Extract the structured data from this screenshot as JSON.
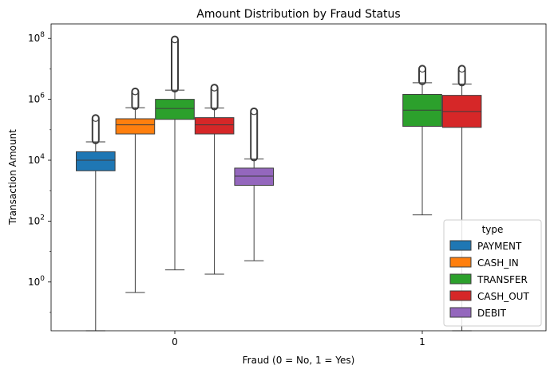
{
  "chart_data": {
    "type": "box",
    "title": "Amount Distribution by Fraud Status",
    "xlabel": "Fraud (0 = No, 1 = Yes)",
    "ylabel": "Transaction Amount",
    "yscale": "log",
    "ylim": [
      0.025,
      300000000
    ],
    "yticks": [
      {
        "value": 1,
        "base": "10",
        "exp": "0"
      },
      {
        "value": 100,
        "base": "10",
        "exp": "2"
      },
      {
        "value": 10000,
        "base": "10",
        "exp": "4"
      },
      {
        "value": 1000000,
        "base": "10",
        "exp": "6"
      },
      {
        "value": 100000000,
        "base": "10",
        "exp": "8"
      }
    ],
    "categories": [
      "0",
      "1"
    ],
    "legend": {
      "title": "type",
      "position": "lower-right"
    },
    "series": [
      {
        "name": "PAYMENT",
        "color": "#1f77b4",
        "boxes": [
          {
            "category": "0",
            "min": 0.02,
            "q1": 4500,
            "median": 10000,
            "q3": 19000,
            "max": 40000,
            "outlier_max": 240000
          },
          null
        ]
      },
      {
        "name": "CASH_IN",
        "color": "#ff7f0e",
        "boxes": [
          {
            "category": "0",
            "min": 0.45,
            "q1": 73000,
            "median": 145000,
            "q3": 230000,
            "max": 530000,
            "outlier_max": 1800000
          },
          null
        ]
      },
      {
        "name": "TRANSFER",
        "color": "#2ca02c",
        "boxes": [
          {
            "category": "0",
            "min": 2.5,
            "q1": 220000,
            "median": 500000,
            "q3": 1000000,
            "max": 2000000,
            "outlier_max": 92000000
          },
          {
            "category": "1",
            "min": 160,
            "q1": 130000,
            "median": 440000,
            "q3": 1450000,
            "max": 3500000,
            "outlier_max": 10000000
          }
        ]
      },
      {
        "name": "CASH_OUT",
        "color": "#d62728",
        "boxes": [
          {
            "category": "0",
            "min": 1.8,
            "q1": 73000,
            "median": 145000,
            "q3": 250000,
            "max": 520000,
            "outlier_max": 2400000
          },
          {
            "category": "1",
            "min": 0.01,
            "q1": 120000,
            "median": 400000,
            "q3": 1350000,
            "max": 3200000,
            "outlier_max": 10000000
          }
        ]
      },
      {
        "name": "DEBIT",
        "color": "#9467bd",
        "boxes": [
          {
            "category": "0",
            "min": 5,
            "q1": 1500,
            "median": 3000,
            "q3": 5500,
            "max": 11000,
            "outlier_max": 400000
          },
          null
        ]
      }
    ]
  }
}
